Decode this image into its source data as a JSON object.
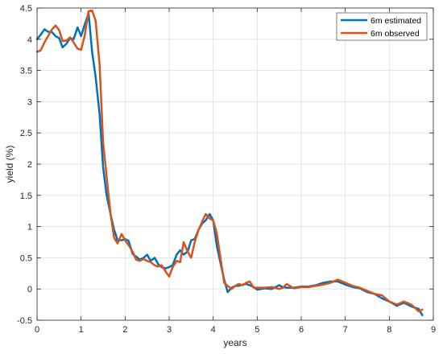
{
  "chart_data": {
    "type": "line",
    "xlabel": "years",
    "ylabel": "yield (%)",
    "xlim": [
      0,
      9
    ],
    "ylim": [
      -0.5,
      4.5
    ],
    "xticks": [
      0,
      1,
      2,
      3,
      4,
      5,
      6,
      7,
      8,
      9
    ],
    "yticks": [
      -0.5,
      0,
      0.5,
      1,
      1.5,
      2,
      2.5,
      3,
      3.5,
      4,
      4.5
    ],
    "xtick_labels": [
      "0",
      "1",
      "2",
      "3",
      "4",
      "5",
      "6",
      "7",
      "8",
      "9"
    ],
    "ytick_labels": [
      "-0.5",
      "0",
      "0.5",
      "1",
      "1.5",
      "2",
      "2.5",
      "3",
      "3.5",
      "4",
      "4.5"
    ],
    "grid": true,
    "legend_position": "top-right",
    "series": [
      {
        "name": "6m estimated",
        "color": "#0072BD",
        "x": [
          0,
          0.08,
          0.17,
          0.25,
          0.33,
          0.42,
          0.5,
          0.58,
          0.67,
          0.75,
          0.83,
          0.92,
          1.0,
          1.08,
          1.17,
          1.25,
          1.33,
          1.42,
          1.5,
          1.58,
          1.67,
          1.75,
          1.83,
          1.92,
          2.0,
          2.08,
          2.17,
          2.25,
          2.33,
          2.42,
          2.5,
          2.58,
          2.67,
          2.75,
          2.83,
          2.92,
          3.0,
          3.08,
          3.17,
          3.25,
          3.33,
          3.42,
          3.5,
          3.58,
          3.67,
          3.75,
          3.83,
          3.92,
          4.0,
          4.08,
          4.17,
          4.25,
          4.33,
          4.42,
          4.5,
          4.58,
          4.67,
          4.75,
          4.83,
          4.92,
          5.0,
          5.17,
          5.33,
          5.5,
          5.58,
          5.67,
          5.83,
          6.0,
          6.17,
          6.33,
          6.5,
          6.67,
          6.83,
          7.0,
          7.17,
          7.33,
          7.5,
          7.67,
          7.83,
          8.0,
          8.17,
          8.33,
          8.5,
          8.67,
          8.75
        ],
        "y": [
          4.0,
          4.07,
          4.16,
          4.12,
          4.12,
          4.05,
          4.02,
          3.87,
          3.93,
          4.02,
          4.0,
          4.19,
          4.05,
          4.23,
          4.42,
          3.8,
          3.4,
          2.8,
          1.95,
          1.5,
          1.2,
          0.95,
          0.78,
          0.78,
          0.8,
          0.77,
          0.56,
          0.52,
          0.47,
          0.5,
          0.55,
          0.45,
          0.5,
          0.4,
          0.35,
          0.33,
          0.35,
          0.38,
          0.55,
          0.62,
          0.55,
          0.6,
          0.78,
          0.8,
          0.95,
          1.05,
          1.1,
          1.2,
          1.1,
          0.7,
          0.4,
          0.15,
          -0.05,
          0.02,
          0.05,
          0.05,
          0.07,
          0.08,
          0.06,
          0.03,
          -0.01,
          0.01,
          0.0,
          0.06,
          0.03,
          0.02,
          0.02,
          0.04,
          0.04,
          0.06,
          0.1,
          0.12,
          0.12,
          0.07,
          0.03,
          0.01,
          -0.05,
          -0.08,
          -0.15,
          -0.2,
          -0.27,
          -0.22,
          -0.28,
          -0.32,
          -0.42
        ]
      },
      {
        "name": "6m observed",
        "color": "#D95319",
        "x": [
          0,
          0.08,
          0.17,
          0.25,
          0.33,
          0.42,
          0.5,
          0.58,
          0.67,
          0.75,
          0.83,
          0.92,
          1.0,
          1.08,
          1.17,
          1.25,
          1.33,
          1.42,
          1.5,
          1.58,
          1.67,
          1.75,
          1.83,
          1.92,
          2.0,
          2.08,
          2.17,
          2.25,
          2.33,
          2.42,
          2.5,
          2.58,
          2.67,
          2.75,
          2.83,
          2.92,
          3.0,
          3.08,
          3.17,
          3.25,
          3.33,
          3.42,
          3.5,
          3.58,
          3.67,
          3.75,
          3.83,
          3.92,
          4.0,
          4.08,
          4.17,
          4.25,
          4.33,
          4.42,
          4.5,
          4.58,
          4.67,
          4.75,
          4.83,
          4.92,
          5.0,
          5.17,
          5.33,
          5.5,
          5.58,
          5.67,
          5.83,
          6.0,
          6.17,
          6.33,
          6.5,
          6.67,
          6.83,
          7.0,
          7.17,
          7.33,
          7.5,
          7.67,
          7.83,
          8.0,
          8.17,
          8.33,
          8.5,
          8.67,
          8.75
        ],
        "y": [
          3.8,
          3.82,
          3.95,
          4.05,
          4.15,
          4.22,
          4.15,
          3.97,
          3.98,
          4.03,
          3.95,
          3.85,
          3.83,
          4.05,
          4.45,
          4.46,
          4.3,
          3.6,
          2.35,
          1.8,
          1.2,
          0.82,
          0.73,
          0.88,
          0.78,
          0.7,
          0.6,
          0.47,
          0.45,
          0.48,
          0.45,
          0.43,
          0.38,
          0.36,
          0.38,
          0.28,
          0.2,
          0.35,
          0.45,
          0.43,
          0.75,
          0.6,
          0.5,
          0.75,
          0.95,
          1.08,
          1.2,
          1.13,
          1.1,
          0.9,
          0.48,
          0.1,
          0.05,
          0.0,
          0.05,
          0.08,
          0.06,
          0.1,
          0.12,
          0.02,
          0.02,
          0.02,
          0.03,
          0.0,
          0.02,
          0.08,
          0.01,
          0.03,
          0.03,
          0.05,
          0.07,
          0.1,
          0.15,
          0.1,
          0.05,
          0.02,
          -0.03,
          -0.08,
          -0.1,
          -0.2,
          -0.25,
          -0.2,
          -0.25,
          -0.36,
          -0.33
        ]
      }
    ]
  }
}
